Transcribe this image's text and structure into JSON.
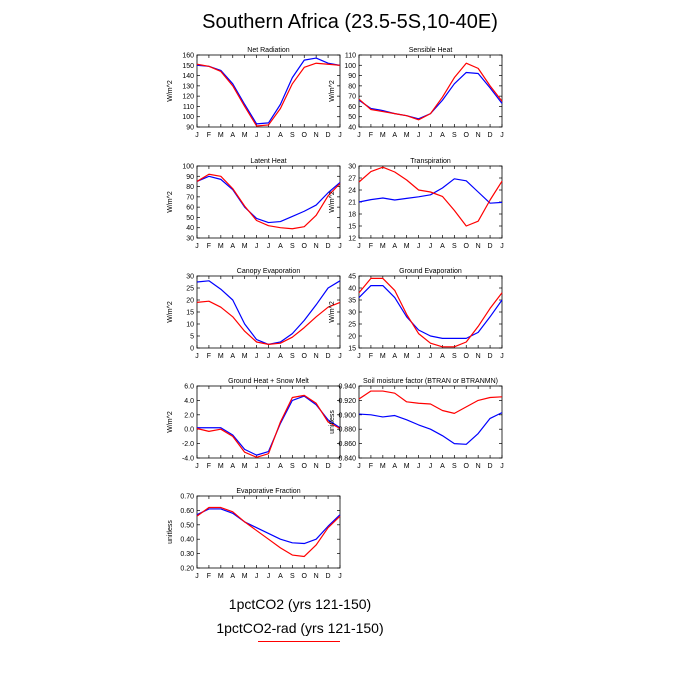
{
  "title": "Southern Africa (23.5-5S,10-40E)",
  "legend": {
    "line1": "1pctCO2 (yrs 121-150)",
    "line2": "1pctCO2-rad (yrs 121-150)"
  },
  "colors": {
    "series_a": "#0000ff",
    "series_b": "#ff0000"
  },
  "chart_data": [
    {
      "type": "line",
      "title": "Net Radiation",
      "ylabel": "W/m^2",
      "categories": [
        "J",
        "F",
        "M",
        "A",
        "M",
        "J",
        "J",
        "A",
        "S",
        "O",
        "N",
        "D",
        "J"
      ],
      "ylim": [
        90,
        160
      ],
      "yticks": [
        "90",
        "100",
        "110",
        "120",
        "130",
        "140",
        "150",
        "160"
      ],
      "series": [
        {
          "color": "#0000ff",
          "values": [
            150,
            149,
            145,
            132,
            112,
            93,
            94,
            112,
            138,
            155,
            157,
            152,
            150
          ]
        },
        {
          "color": "#ff0000",
          "values": [
            151,
            149,
            144,
            130,
            110,
            91,
            92,
            108,
            132,
            148,
            152,
            151,
            150
          ]
        }
      ]
    },
    {
      "type": "line",
      "title": "Sensible Heat",
      "ylabel": "W/m^2",
      "categories": [
        "J",
        "F",
        "M",
        "A",
        "M",
        "J",
        "J",
        "A",
        "S",
        "O",
        "N",
        "D",
        "J"
      ],
      "ylim": [
        40,
        110
      ],
      "yticks": [
        "40",
        "50",
        "60",
        "70",
        "80",
        "90",
        "100",
        "110"
      ],
      "series": [
        {
          "color": "#0000ff",
          "values": [
            66,
            58,
            56,
            53,
            51,
            48,
            53,
            66,
            82,
            93,
            92,
            78,
            63
          ]
        },
        {
          "color": "#ff0000",
          "values": [
            67,
            57,
            55,
            53,
            51,
            47,
            53,
            69,
            88,
            102,
            97,
            80,
            65
          ]
        }
      ]
    },
    {
      "type": "line",
      "title": "Latent Heat",
      "ylabel": "W/m^2",
      "categories": [
        "J",
        "F",
        "M",
        "A",
        "M",
        "J",
        "J",
        "A",
        "S",
        "O",
        "N",
        "D",
        "J"
      ],
      "ylim": [
        30,
        100
      ],
      "yticks": [
        "30",
        "40",
        "50",
        "60",
        "70",
        "80",
        "90",
        "100"
      ],
      "series": [
        {
          "color": "#0000ff",
          "values": [
            85,
            90,
            87,
            77,
            60,
            49,
            45,
            46,
            51,
            56,
            62,
            74,
            84
          ]
        },
        {
          "color": "#ff0000",
          "values": [
            85,
            92,
            90,
            78,
            61,
            47,
            42,
            40,
            39,
            41,
            52,
            71,
            83
          ]
        }
      ]
    },
    {
      "type": "line",
      "title": "Transpiration",
      "ylabel": "W/m^2",
      "categories": [
        "J",
        "F",
        "M",
        "A",
        "M",
        "J",
        "J",
        "A",
        "S",
        "O",
        "N",
        "D",
        "J"
      ],
      "ylim": [
        12,
        30
      ],
      "yticks": [
        "12",
        "15",
        "18",
        "21",
        "24",
        "27",
        "30"
      ],
      "series": [
        {
          "color": "#0000ff",
          "values": [
            21.0,
            21.6,
            22.0,
            21.5,
            21.9,
            22.3,
            22.8,
            24.5,
            26.8,
            26.3,
            23.5,
            20.7,
            20.9
          ]
        },
        {
          "color": "#ff0000",
          "values": [
            26.0,
            28.6,
            29.7,
            28.5,
            26.5,
            24.0,
            23.5,
            22.4,
            18.9,
            15.0,
            16.2,
            21.5,
            26.2
          ]
        }
      ]
    },
    {
      "type": "line",
      "title": "Canopy Evaporation",
      "ylabel": "W/m^2",
      "categories": [
        "J",
        "F",
        "M",
        "A",
        "M",
        "J",
        "J",
        "A",
        "S",
        "O",
        "N",
        "D",
        "J"
      ],
      "ylim": [
        0,
        30
      ],
      "yticks": [
        "0",
        "5",
        "10",
        "15",
        "20",
        "25",
        "30"
      ],
      "series": [
        {
          "color": "#0000ff",
          "values": [
            27.5,
            28.0,
            24.5,
            20.0,
            10.0,
            3.5,
            1.5,
            2.5,
            6.0,
            11.5,
            18.0,
            25.0,
            28.0
          ]
        },
        {
          "color": "#ff0000",
          "values": [
            19.0,
            19.5,
            17.0,
            13.0,
            7.0,
            2.5,
            1.5,
            2.0,
            4.5,
            8.5,
            13.0,
            17.0,
            19.0
          ]
        }
      ]
    },
    {
      "type": "line",
      "title": "Ground Evaporation",
      "ylabel": "W/m^2",
      "categories": [
        "J",
        "F",
        "M",
        "A",
        "M",
        "J",
        "J",
        "A",
        "S",
        "O",
        "N",
        "D",
        "J"
      ],
      "ylim": [
        15,
        45
      ],
      "yticks": [
        "15",
        "20",
        "25",
        "30",
        "35",
        "40",
        "45"
      ],
      "series": [
        {
          "color": "#0000ff",
          "values": [
            36,
            41,
            41,
            36,
            28,
            22.5,
            20,
            19,
            19,
            19,
            21.5,
            28,
            35
          ]
        },
        {
          "color": "#ff0000",
          "values": [
            38,
            44,
            44,
            39,
            29,
            21,
            17,
            15.5,
            15.5,
            17.5,
            24,
            31.5,
            38
          ]
        }
      ]
    },
    {
      "type": "line",
      "title": "Ground Heat + Snow Melt",
      "ylabel": "W/m^2",
      "categories": [
        "J",
        "F",
        "M",
        "A",
        "M",
        "J",
        "J",
        "A",
        "S",
        "O",
        "N",
        "D",
        "J"
      ],
      "ylim": [
        -4.0,
        6.0
      ],
      "yticks": [
        "-4.0",
        "-2.0",
        "0.0",
        "2.0",
        "4.0",
        "6.0"
      ],
      "series": [
        {
          "color": "#0000ff",
          "values": [
            0.2,
            0.2,
            0.2,
            -0.8,
            -2.8,
            -3.6,
            -3.1,
            0.8,
            4.0,
            4.6,
            3.4,
            1.3,
            0.2
          ]
        },
        {
          "color": "#ff0000",
          "values": [
            0.1,
            -0.3,
            0.0,
            -1.0,
            -3.2,
            -3.9,
            -3.4,
            1.0,
            4.4,
            4.7,
            3.6,
            1.0,
            0.1
          ]
        }
      ]
    },
    {
      "type": "line",
      "title": "Soil moisture factor (BTRAN or BTRANMN)",
      "ylabel": "unitless",
      "categories": [
        "J",
        "F",
        "M",
        "A",
        "M",
        "J",
        "J",
        "A",
        "S",
        "O",
        "N",
        "D",
        "J"
      ],
      "ylim": [
        0.84,
        0.94
      ],
      "yticks": [
        "0.840",
        "0.860",
        "0.880",
        "0.900",
        "0.920",
        "0.940"
      ],
      "series": [
        {
          "color": "#0000ff",
          "values": [
            0.901,
            0.9,
            0.897,
            0.899,
            0.893,
            0.886,
            0.88,
            0.871,
            0.86,
            0.859,
            0.874,
            0.895,
            0.903
          ]
        },
        {
          "color": "#ff0000",
          "values": [
            0.922,
            0.933,
            0.933,
            0.93,
            0.918,
            0.916,
            0.915,
            0.906,
            0.902,
            0.911,
            0.92,
            0.924,
            0.925
          ]
        }
      ]
    },
    {
      "type": "line",
      "title": "Evaporative Fraction",
      "ylabel": "unitless",
      "categories": [
        "J",
        "F",
        "M",
        "A",
        "M",
        "J",
        "J",
        "A",
        "S",
        "O",
        "N",
        "D",
        "J"
      ],
      "ylim": [
        0.2,
        0.7
      ],
      "yticks": [
        "0.20",
        "0.30",
        "0.40",
        "0.50",
        "0.60",
        "0.70"
      ],
      "series": [
        {
          "color": "#0000ff",
          "values": [
            0.57,
            0.61,
            0.61,
            0.58,
            0.52,
            0.48,
            0.44,
            0.4,
            0.375,
            0.37,
            0.4,
            0.49,
            0.57
          ]
        },
        {
          "color": "#ff0000",
          "values": [
            0.56,
            0.62,
            0.62,
            0.59,
            0.52,
            0.46,
            0.4,
            0.34,
            0.29,
            0.28,
            0.36,
            0.48,
            0.56
          ]
        }
      ]
    }
  ]
}
